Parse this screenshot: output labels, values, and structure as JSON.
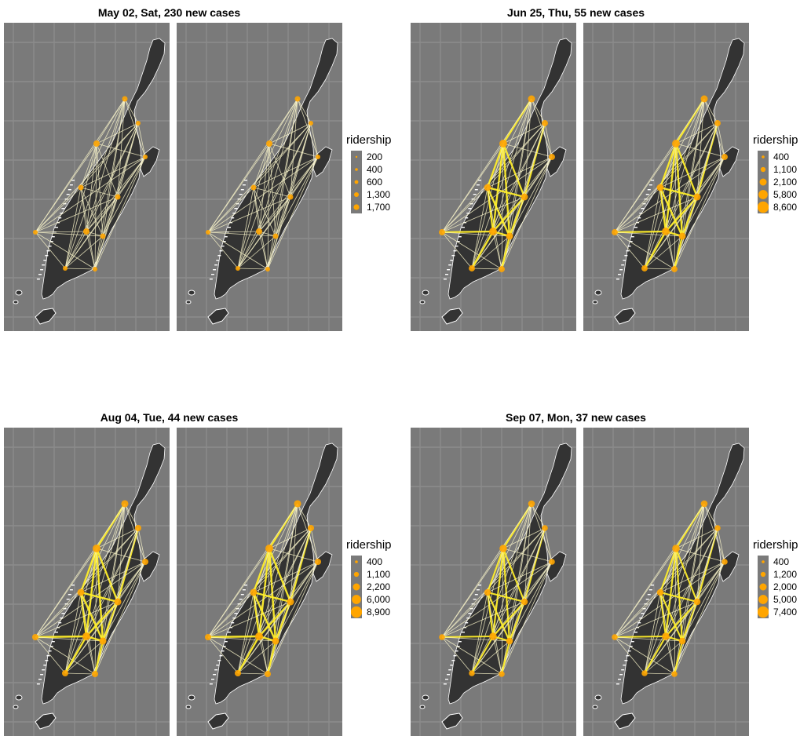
{
  "colors": {
    "panel_bg": "#7a7a7a",
    "grid": "#8c8c8c",
    "land": "#333333",
    "flow_low": "#f7f2c8",
    "flow_high": "#ffee2a",
    "station": "#ffa500"
  },
  "groups": [
    {
      "title": "May 02, Sat, 230 new cases",
      "legend": {
        "title": "ridership",
        "labels": [
          "200",
          "400",
          "600",
          "1,300",
          "1,700"
        ]
      },
      "intensity": 0.0
    },
    {
      "title": "Jun 25, Thu, 55 new cases",
      "legend": {
        "title": "ridership",
        "labels": [
          "400",
          "1,100",
          "2,100",
          "5,800",
          "8,600"
        ]
      },
      "intensity": 0.8
    },
    {
      "title": "Aug 04, Tue, 44 new cases",
      "legend": {
        "title": "ridership",
        "labels": [
          "400",
          "1,100",
          "2,200",
          "6,000",
          "8,900"
        ]
      },
      "intensity": 0.85
    },
    {
      "title": "Sep 07, Mon, 37 new cases",
      "legend": {
        "title": "ridership",
        "labels": [
          "400",
          "1,200",
          "2,000",
          "5,000",
          "7,400"
        ]
      },
      "intensity": 0.65
    }
  ]
}
